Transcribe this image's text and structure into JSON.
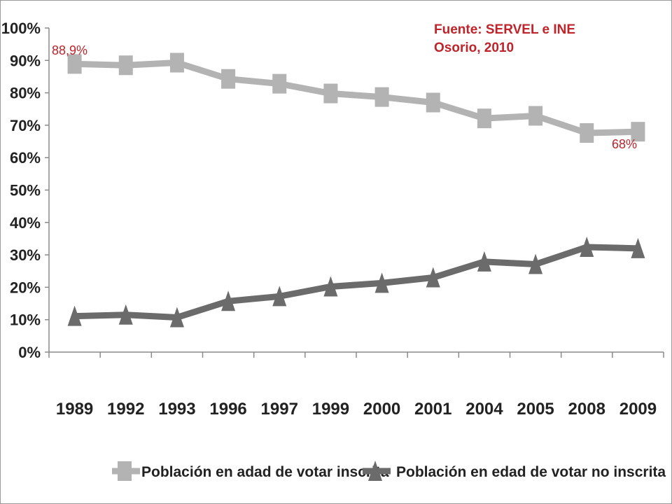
{
  "source": {
    "line1": "Fuente: SERVEL e INE",
    "line2": "Osorio, 2010"
  },
  "annotations": {
    "first": "88,9%",
    "last": "68%"
  },
  "colors": {
    "inscrita": "#b3b3b3",
    "no_inscrita": "#6b6b6b",
    "annotation": "#c0232a",
    "axis": "#8a8a8a"
  },
  "chart_data": {
    "type": "line",
    "categories": [
      "1989",
      "1992",
      "1993",
      "1996",
      "1997",
      "1999",
      "2000",
      "2001",
      "2004",
      "2005",
      "2008",
      "2009"
    ],
    "y_ticks": [
      "0%",
      "10%",
      "20%",
      "30%",
      "40%",
      "50%",
      "60%",
      "70%",
      "80%",
      "90%",
      "100%"
    ],
    "ylim": [
      0,
      100
    ],
    "grid": false,
    "legend_position": "bottom",
    "series": [
      {
        "name": "Población en adad de votar inscrita",
        "marker": "square",
        "values": [
          88.9,
          88.5,
          89.3,
          84.3,
          82.8,
          79.8,
          78.7,
          77.0,
          72.1,
          72.9,
          67.6,
          68.0
        ]
      },
      {
        "name": "Población en edad de votar no inscrita",
        "marker": "triangle",
        "values": [
          11.1,
          11.5,
          10.7,
          15.7,
          17.2,
          20.2,
          21.3,
          23.0,
          27.9,
          27.1,
          32.4,
          32.0
        ]
      }
    ]
  }
}
